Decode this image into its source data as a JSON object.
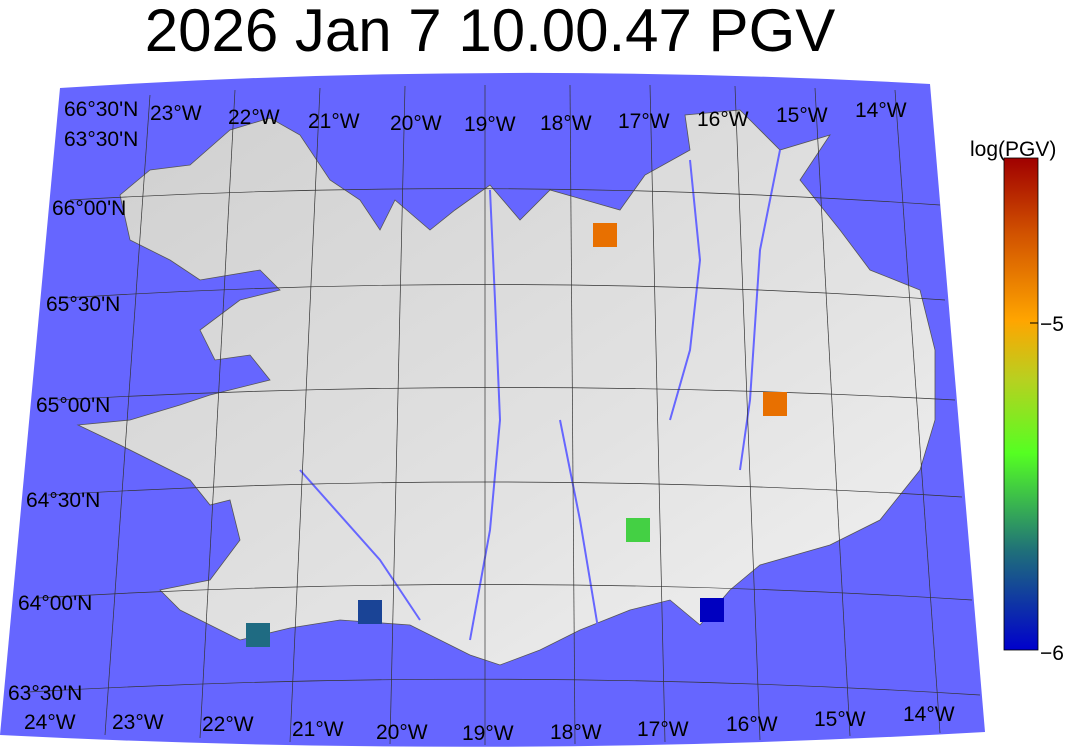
{
  "title": "2026 Jan 7 10.00.47 PGV",
  "colors": {
    "sea": "#6666ff",
    "land": "#d8d8d8",
    "rivers": "#6666ff"
  },
  "map": {
    "top_lon_labels": [
      "23°W",
      "22°W",
      "21°W",
      "20°W",
      "19°W",
      "18°W",
      "17°W",
      "16°W",
      "15°W",
      "14°W"
    ],
    "bottom_lon_labels": [
      "24°W",
      "23°W",
      "22°W",
      "21°W",
      "20°W",
      "19°W",
      "18°W",
      "17°W",
      "16°W",
      "15°W",
      "14°W"
    ],
    "lat_labels": [
      "66°00'N",
      "65°30'N",
      "65°00'N",
      "64°30'N",
      "64°00'N",
      "63°30'N"
    ],
    "corner_labels": [
      "63°30'N",
      "66°30'N"
    ]
  },
  "colorbar": {
    "label": "log(PGV)",
    "min": -6,
    "max": -4.5,
    "colormap": "jet-like (blue-green-orange-red)",
    "ticks": [
      {
        "value": -5,
        "label": "−5"
      },
      {
        "value": -6,
        "label": "−6"
      }
    ]
  },
  "stations": [
    {
      "value": -4.85,
      "color": "#e87000"
    },
    {
      "value": -4.85,
      "color": "#e87000"
    },
    {
      "value": -5.6,
      "color": "#44d044"
    },
    {
      "value": -5.97,
      "color": "#0000c0"
    },
    {
      "value": -5.85,
      "color": "#1a4496"
    },
    {
      "value": -5.75,
      "color": "#1f6b82"
    }
  ]
}
